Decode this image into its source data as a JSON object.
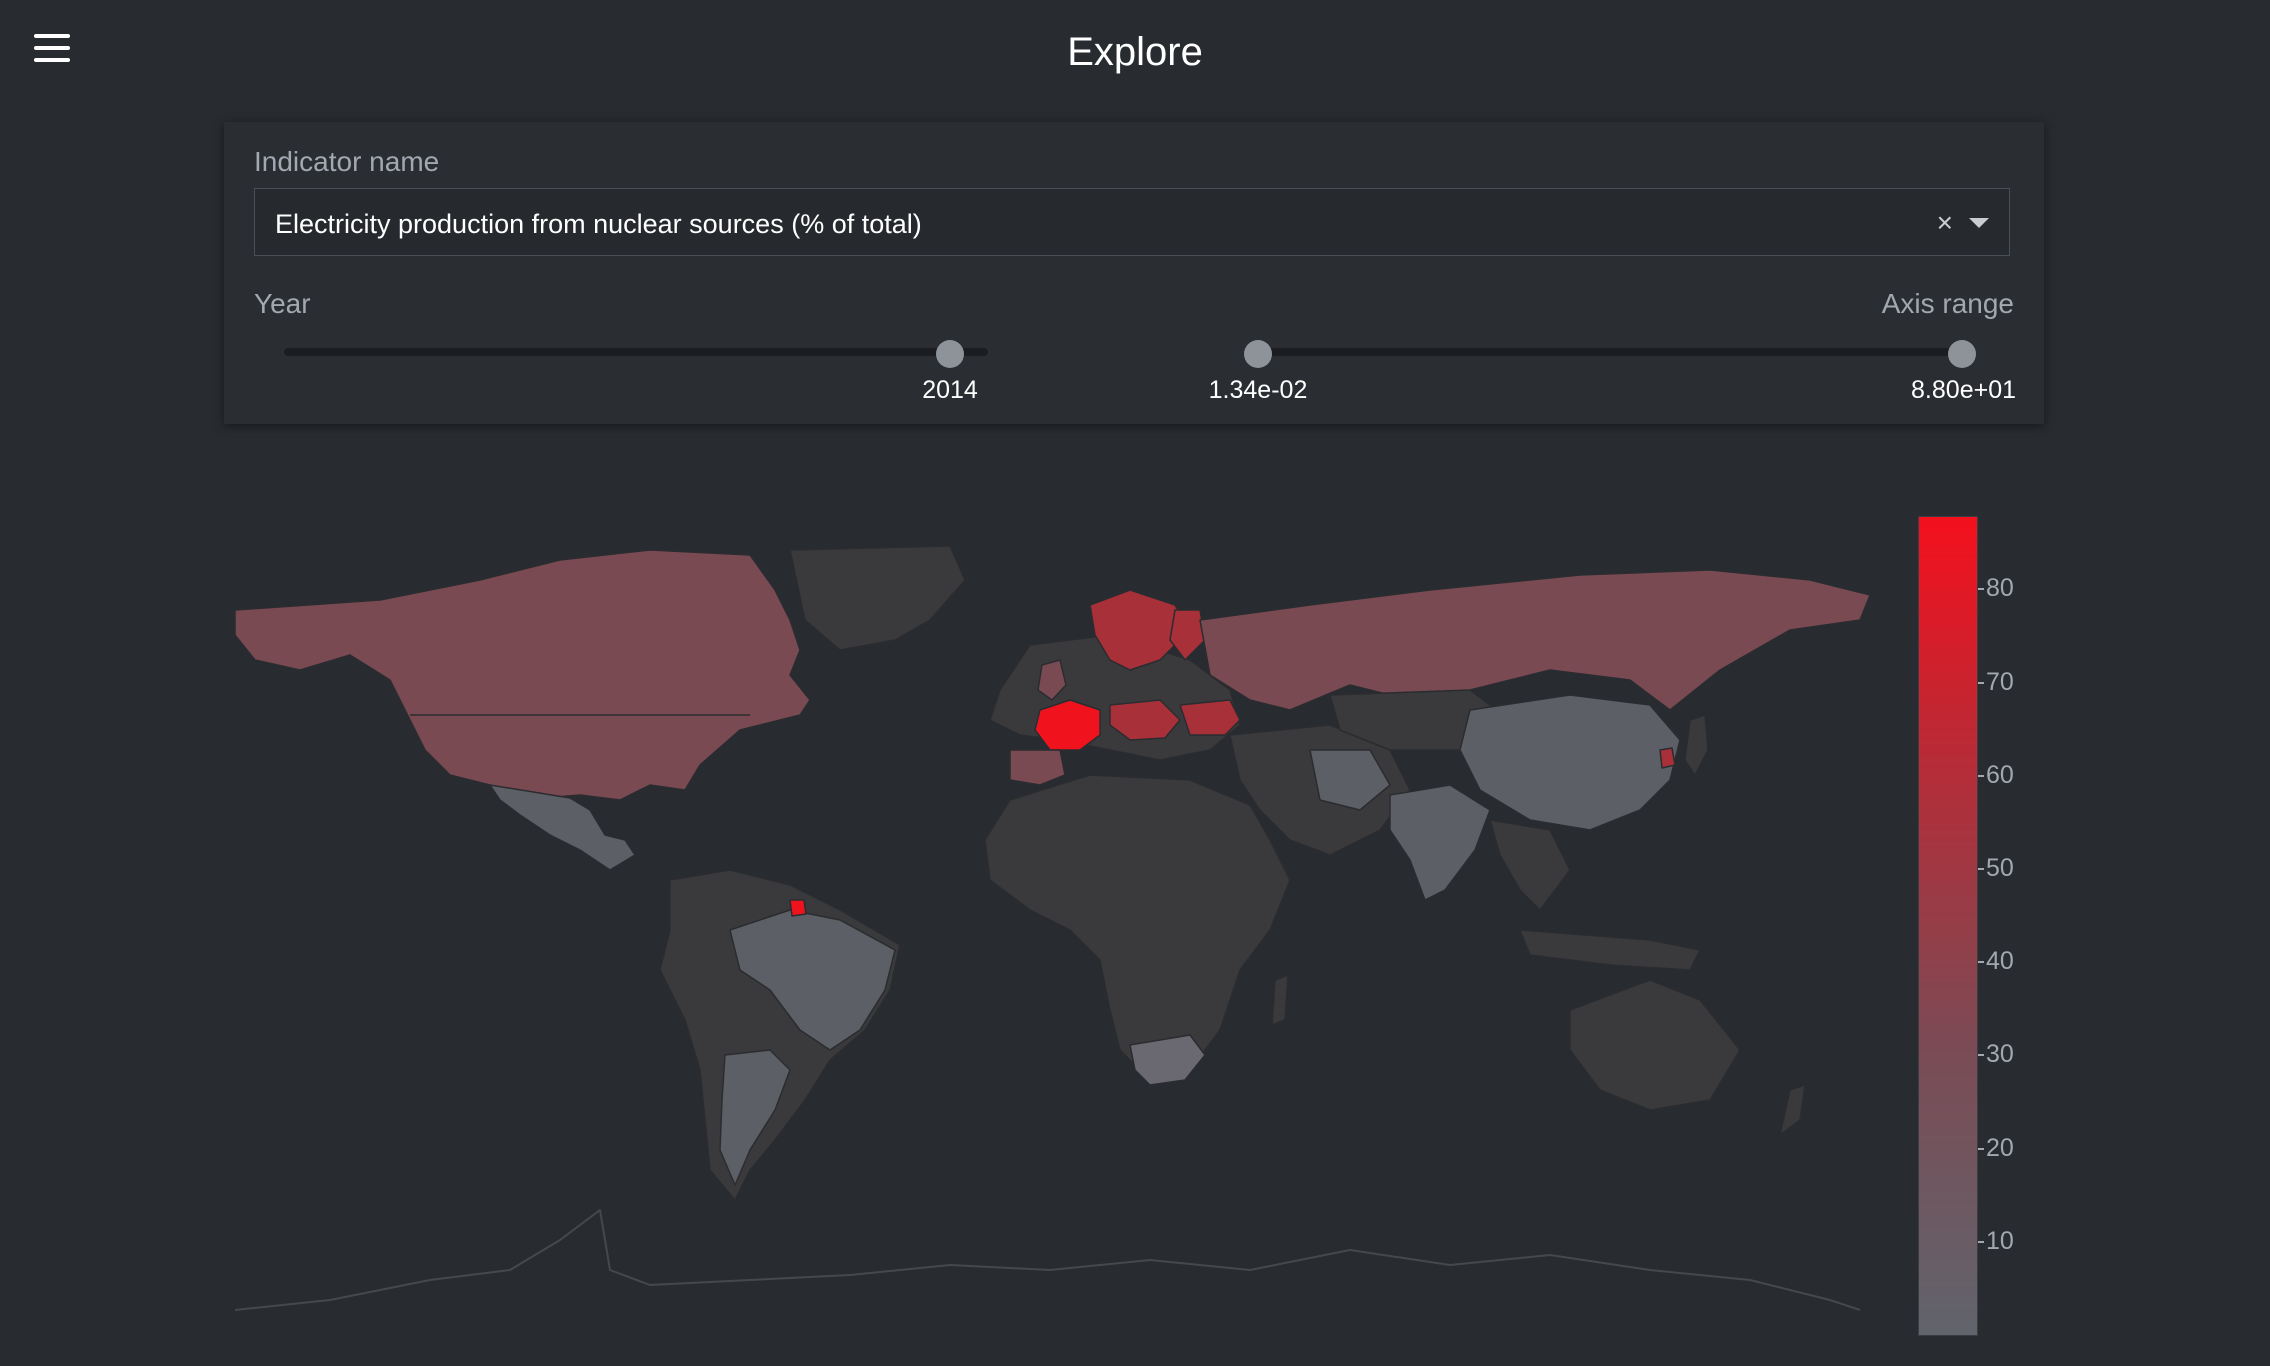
{
  "header": {
    "title": "Explore",
    "menu_icon": "hamburger-menu-icon"
  },
  "controls": {
    "indicator_label": "Indicator name",
    "indicator_value": "Electricity production from nuclear sources (% of total)",
    "clear_symbol": "×",
    "year_label": "Year",
    "year_value": "2014",
    "year_slider_fraction": 0.94,
    "axis_range_label": "Axis range",
    "axis_range_min": "1.34e-02",
    "axis_range_max": "8.80e+01"
  },
  "colorbar": {
    "ticks": [
      "80",
      "70",
      "60",
      "50",
      "40",
      "30",
      "20",
      "10"
    ],
    "colors": {
      "low": "#61646c",
      "mid": "#7b4b55",
      "high": "#f4101d",
      "no_data": "#3a3a3c"
    }
  }
}
